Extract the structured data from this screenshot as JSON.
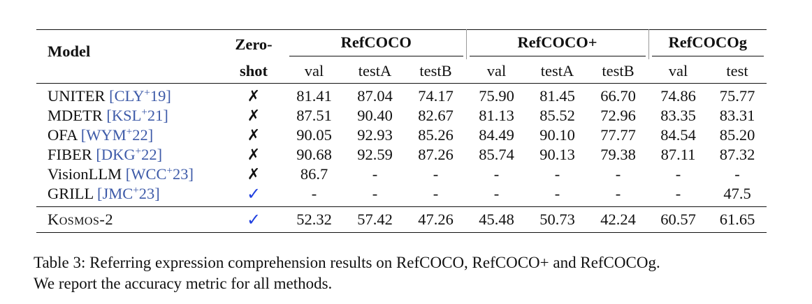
{
  "table": {
    "headers": {
      "model": "Model",
      "zero_shot_line1": "Zero-",
      "zero_shot_line2": "shot",
      "groups": [
        "RefCOCO",
        "RefCOCO+",
        "RefCOCOg"
      ],
      "subcolumns": [
        "val",
        "testA",
        "testB",
        "val",
        "testA",
        "testB",
        "val",
        "test"
      ]
    },
    "rows": [
      {
        "name": "UNITER",
        "cite_key": "CLY",
        "cite_year": "19",
        "zero_shot": "✗",
        "values": [
          "81.41",
          "87.04",
          "74.17",
          "75.90",
          "81.45",
          "66.70",
          "74.86",
          "75.77"
        ]
      },
      {
        "name": "MDETR",
        "cite_key": "KSL",
        "cite_year": "21",
        "zero_shot": "✗",
        "values": [
          "87.51",
          "90.40",
          "82.67",
          "81.13",
          "85.52",
          "72.96",
          "83.35",
          "83.31"
        ]
      },
      {
        "name": "OFA",
        "cite_key": "WYM",
        "cite_year": "22",
        "zero_shot": "✗",
        "values": [
          "90.05",
          "92.93",
          "85.26",
          "84.49",
          "90.10",
          "77.77",
          "84.54",
          "85.20"
        ]
      },
      {
        "name": "FIBER",
        "cite_key": "DKG",
        "cite_year": "22",
        "zero_shot": "✗",
        "values": [
          "90.68",
          "92.59",
          "87.26",
          "85.74",
          "90.13",
          "79.38",
          "87.11",
          "87.32"
        ]
      },
      {
        "name": "VisionLLM",
        "cite_key": "WCC",
        "cite_year": "23",
        "zero_shot": "✗",
        "values": [
          "86.7",
          "-",
          "-",
          "-",
          "-",
          "-",
          "-",
          "-"
        ]
      },
      {
        "name": "GRILL",
        "cite_key": "JMC",
        "cite_year": "23",
        "zero_shot": "✓",
        "values": [
          "-",
          "-",
          "-",
          "-",
          "-",
          "-",
          "-",
          "47.5"
        ]
      }
    ],
    "final_row": {
      "name": "Kosmos-2",
      "zero_shot": "✓",
      "values": [
        "52.32",
        "57.42",
        "47.26",
        "45.48",
        "50.73",
        "42.24",
        "60.57",
        "61.65"
      ]
    },
    "cite_open": "[",
    "cite_plus": "+",
    "cite_close": "]"
  },
  "caption": {
    "line1": "Table 3: Referring expression comprehension results on RefCOCO, RefCOCO+ and RefCOCOg.",
    "line2": "We report the accuracy metric for all methods."
  }
}
